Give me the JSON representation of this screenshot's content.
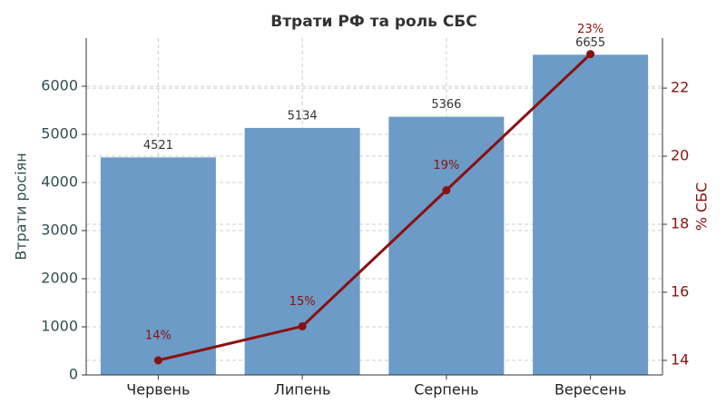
{
  "chart_data": {
    "type": "bar-line",
    "title": "Втрати РФ та роль СБС",
    "ylabel": "Втрати росіян",
    "y2label": "% СБС",
    "categories": [
      "Червень",
      "Липень",
      "Серпень",
      "Вересень"
    ],
    "series": [
      {
        "type": "bar",
        "color": "#6b9bc6",
        "values": [
          4521,
          5134,
          5366,
          6655
        ]
      },
      {
        "type": "line",
        "axis": "y2",
        "color": "#8b1010",
        "values": [
          14,
          15,
          19,
          23
        ],
        "value_labels": [
          "14%",
          "15%",
          "19%",
          "23%"
        ]
      }
    ],
    "ylim": [
      0,
      7000
    ],
    "yticks": [
      0,
      1000,
      2000,
      3000,
      4000,
      5000,
      6000
    ],
    "y2lim": [
      13.57,
      23.47
    ],
    "y2ticks": [
      14,
      16,
      18,
      20,
      22
    ],
    "y_color": "#2f4f4f",
    "y2_color": "#8b1010",
    "grid": true
  }
}
